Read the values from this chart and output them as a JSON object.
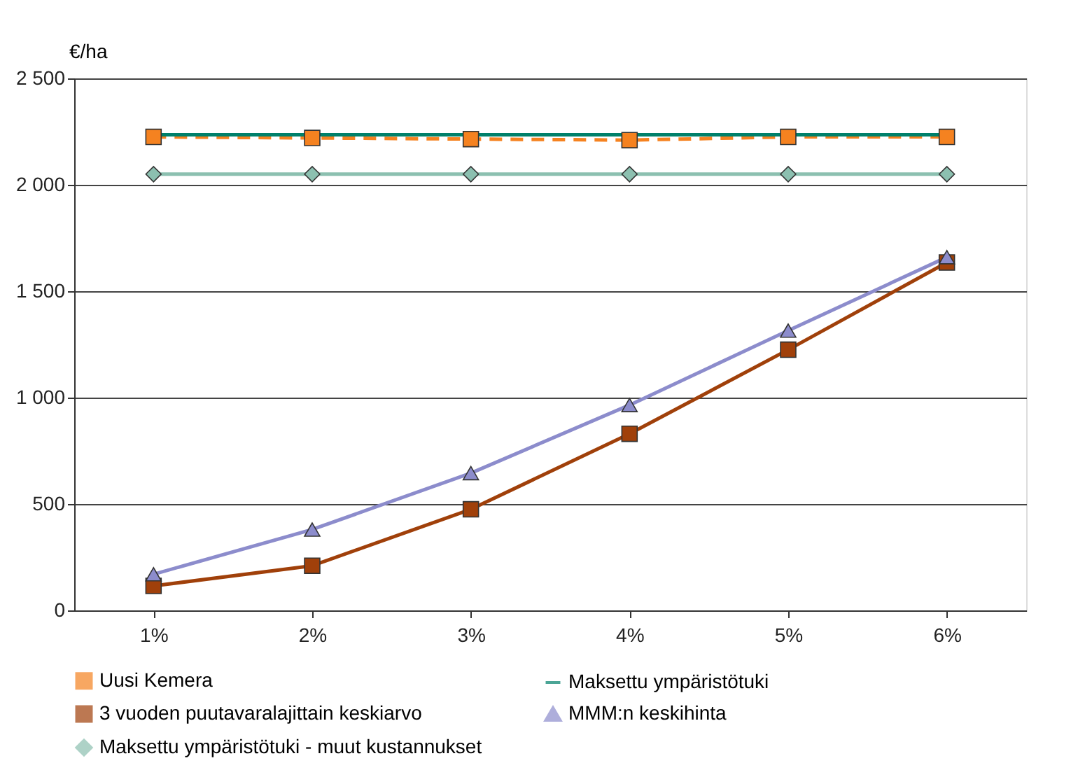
{
  "chart_data": {
    "type": "line",
    "ylabel": "€/ha",
    "categories": [
      "1%",
      "2%",
      "3%",
      "4%",
      "5%",
      "6%"
    ],
    "ylim": [
      0,
      2500
    ],
    "yticks": [
      0,
      500,
      {
        "value": 1000,
        "label": "1 000"
      },
      {
        "value": 1500,
        "label": "1 500"
      },
      {
        "value": 2000,
        "label": "2 000"
      },
      {
        "value": 2500,
        "label": "2 500"
      }
    ],
    "grid": "y",
    "legend": "bottom",
    "series": [
      {
        "name": "Uusi Kemera",
        "color": "#f58220",
        "marker": "square",
        "line_style": "dashed",
        "values": [
          2225,
          2220,
          2215,
          2210,
          2225,
          2225
        ]
      },
      {
        "name": "Maksettu ympäristötuki",
        "color": "#00806a",
        "marker": "none",
        "line_style": "solid",
        "values": [
          2235,
          2235,
          2235,
          2235,
          2235,
          2235
        ]
      },
      {
        "name": "3 vuoden puutavaralajittain keskiarvo",
        "color": "#a0400a",
        "marker": "square",
        "line_style": "solid",
        "values": [
          115,
          210,
          475,
          830,
          1225,
          1635
        ]
      },
      {
        "name": "MMM:n keskihinta",
        "color": "#8c8ccc",
        "marker": "triangle",
        "line_style": "solid",
        "values": [
          170,
          380,
          645,
          965,
          1315,
          1660
        ]
      },
      {
        "name": "Maksettu ympäristötuki - muut kustannukset",
        "color": "#8cc0b0",
        "marker": "diamond",
        "line_style": "solid",
        "values": [
          2050,
          2050,
          2050,
          2050,
          2050,
          2050
        ]
      }
    ]
  }
}
